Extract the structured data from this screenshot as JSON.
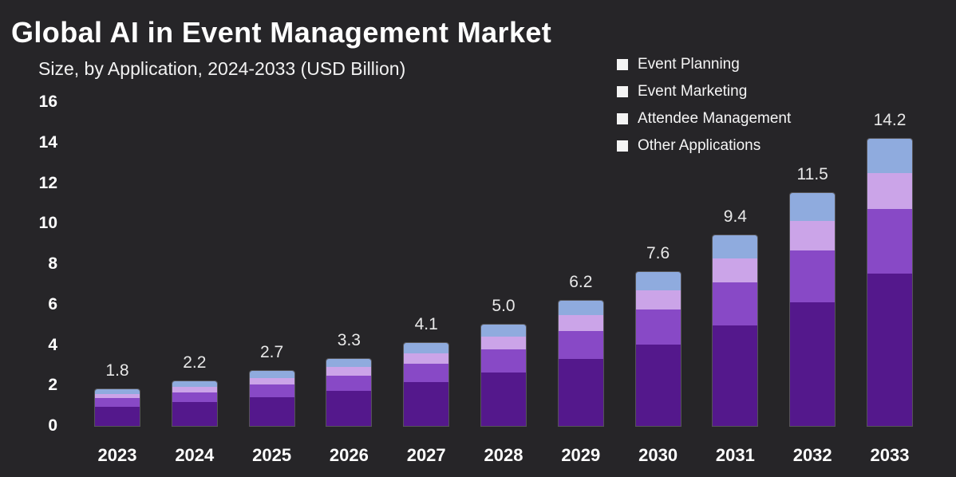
{
  "title": "Global AI in Event Management Market",
  "subtitle": "Size, by Application, 2024-2033 (USD Billion)",
  "colors": {
    "background": "#262528",
    "title_text": "#ffffff",
    "subtitle_text": "#f2f2f2",
    "axis_text": "#ffffff",
    "value_label_text": "#e8e8e8",
    "legend_marker": "#f4f4f4",
    "bar_outline": "rgba(255,255,255,0.22)"
  },
  "chart_data": {
    "type": "bar",
    "stacked": true,
    "title": "Global AI in Event Management Market",
    "subtitle": "Size, by Application, 2024-2033 (USD Billion)",
    "xlabel": "",
    "ylabel": "",
    "ylim": [
      0,
      16
    ],
    "yticks": [
      0,
      2,
      4,
      6,
      8,
      10,
      12,
      14,
      16
    ],
    "grid": false,
    "legend_position": "top-right",
    "legend_marker_color": "#f4f4f4",
    "categories": [
      "2023",
      "2024",
      "2025",
      "2026",
      "2027",
      "2028",
      "2029",
      "2030",
      "2031",
      "2032",
      "2033"
    ],
    "totals": [
      1.8,
      2.2,
      2.7,
      3.3,
      4.1,
      5.0,
      6.2,
      7.6,
      9.4,
      11.5,
      14.2
    ],
    "total_labels": [
      "1.8",
      "2.2",
      "2.7",
      "3.3",
      "4.1",
      "5.0",
      "6.2",
      "7.6",
      "9.4",
      "11.5",
      "14.2"
    ],
    "series": [
      {
        "name": "Event Planning",
        "color": "#54188c",
        "values": [
          0.95,
          1.17,
          1.43,
          1.75,
          2.17,
          2.65,
          3.29,
          4.03,
          4.98,
          6.1,
          7.53
        ]
      },
      {
        "name": "Event Marketing",
        "color": "#8849c6",
        "values": [
          0.41,
          0.49,
          0.61,
          0.74,
          0.92,
          1.13,
          1.39,
          1.71,
          2.12,
          2.58,
          3.19
        ]
      },
      {
        "name": "Attendee Management",
        "color": "#cba4e8",
        "values": [
          0.22,
          0.28,
          0.34,
          0.41,
          0.51,
          0.62,
          0.78,
          0.95,
          1.17,
          1.44,
          1.78
        ]
      },
      {
        "name": "Other Applications",
        "color": "#8fabde",
        "values": [
          0.22,
          0.26,
          0.32,
          0.4,
          0.5,
          0.6,
          0.74,
          0.91,
          1.13,
          1.38,
          1.7
        ]
      }
    ]
  }
}
